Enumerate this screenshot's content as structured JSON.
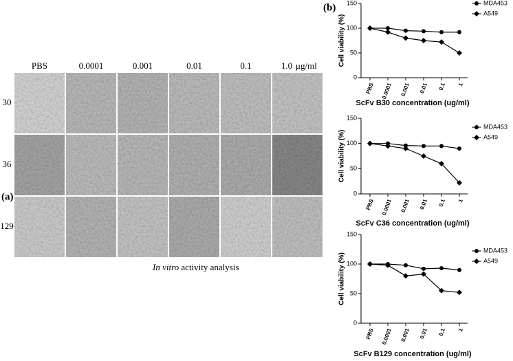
{
  "panel_a": {
    "label": "(a)",
    "columns": [
      "PBS",
      "0.0001",
      "0.001",
      "0.01",
      "0.1",
      "1.0"
    ],
    "unit": "μg/ml",
    "rows": [
      "30",
      "36",
      "129"
    ],
    "caption": {
      "italic": "In vitro",
      "text": "activity analysis"
    }
  },
  "panel_b": {
    "label": "(b)"
  },
  "chart_data": [
    {
      "type": "line",
      "xlabel": "ScFv B30 concentration (ug/ml)",
      "ylabel": "Cell viability (%)",
      "categories": [
        "PBS",
        "0.0001",
        "0.001",
        "0.01",
        "0.1",
        "1"
      ],
      "series": [
        {
          "name": "MDA453",
          "color": "#000000",
          "marker": "circle",
          "values": [
            100,
            100,
            95,
            94,
            92,
            92
          ]
        },
        {
          "name": "A549",
          "color": "#000000",
          "marker": "diamond",
          "values": [
            100,
            92,
            80,
            75,
            72,
            50
          ]
        }
      ],
      "ylim": [
        0,
        150
      ],
      "yticks": [
        0,
        50,
        100,
        150
      ],
      "grid": false,
      "legend": "upper right"
    },
    {
      "type": "line",
      "xlabel": "ScFv C36 concentration (ug/ml)",
      "ylabel": "Cell viability (%)",
      "categories": [
        "PBS",
        "0.0001",
        "0.001",
        "0.01",
        "0.1",
        "1"
      ],
      "series": [
        {
          "name": "MDA453",
          "color": "#000000",
          "marker": "circle",
          "values": [
            100,
            100,
            96,
            95,
            95,
            90
          ]
        },
        {
          "name": "A549",
          "color": "#000000",
          "marker": "diamond",
          "values": [
            100,
            95,
            90,
            75,
            60,
            22
          ]
        }
      ],
      "ylim": [
        0,
        150
      ],
      "yticks": [
        0,
        50,
        100,
        150
      ],
      "grid": false,
      "legend": "upper right"
    },
    {
      "type": "line",
      "xlabel": "ScFv B129 concentration (ug/ml)",
      "ylabel": "Cell viability (%)",
      "categories": [
        "PBS",
        "0.0001",
        "0.001",
        "0.01",
        "0.1",
        "1"
      ],
      "series": [
        {
          "name": "MDA453",
          "color": "#000000",
          "marker": "circle",
          "values": [
            100,
            100,
            98,
            92,
            93,
            90
          ]
        },
        {
          "name": "A549",
          "color": "#000000",
          "marker": "diamond",
          "values": [
            100,
            98,
            80,
            83,
            55,
            52
          ]
        }
      ],
      "ylim": [
        0,
        150
      ],
      "yticks": [
        0,
        50,
        100,
        150
      ],
      "grid": false,
      "legend": "upper right"
    }
  ]
}
